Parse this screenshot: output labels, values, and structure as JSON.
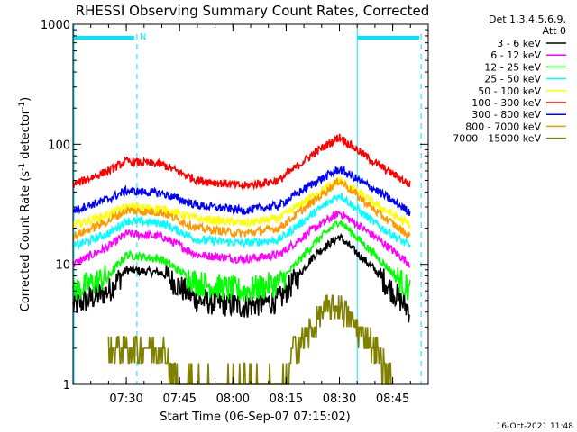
{
  "chart_data": {
    "type": "line",
    "title": "RHESSI Observing Summary Count Rates, Corrected",
    "ylabel_parts": [
      "Corrected Count Rate (s",
      "-1",
      " detector",
      "-1",
      ")"
    ],
    "xlabel": "Start Time (06-Sep-07 07:15:02)",
    "footer": "16-Oct-2021 11:48",
    "y_scale": "log",
    "ylim": [
      1,
      1000
    ],
    "y_ticks": [
      {
        "value": 1,
        "label": "1"
      },
      {
        "value": 10,
        "label": "10"
      },
      {
        "value": 100,
        "label": "100"
      },
      {
        "value": 1000,
        "label": "1000"
      }
    ],
    "x_range_minutes": [
      0,
      100
    ],
    "x_ticks": [
      {
        "minute": 15,
        "label": "07:30"
      },
      {
        "minute": 30,
        "label": "07:45"
      },
      {
        "minute": 45,
        "label": "08:00"
      },
      {
        "minute": 60,
        "label": "08:15"
      },
      {
        "minute": 75,
        "label": "08:30"
      },
      {
        "minute": 90,
        "label": "08:45"
      }
    ],
    "legend_header": [
      "Det 1,3,4,5,6,9,",
      "Att 0"
    ],
    "legend_placement": "right",
    "series": [
      {
        "name": "3 - 6 keV",
        "color": "#000000",
        "points": [
          [
            0,
            4.5
          ],
          [
            10,
            6
          ],
          [
            15,
            9
          ],
          [
            25,
            8.5
          ],
          [
            35,
            5
          ],
          [
            48,
            4.5
          ],
          [
            58,
            5
          ],
          [
            68,
            12
          ],
          [
            75,
            17
          ],
          [
            85,
            9
          ],
          [
            95,
            4
          ]
        ]
      },
      {
        "name": "6 - 12 keV",
        "color": "#ff00ff",
        "points": [
          [
            0,
            10
          ],
          [
            10,
            14
          ],
          [
            15,
            18
          ],
          [
            25,
            17
          ],
          [
            35,
            12
          ],
          [
            48,
            11
          ],
          [
            58,
            12
          ],
          [
            68,
            20
          ],
          [
            75,
            27
          ],
          [
            85,
            17
          ],
          [
            95,
            10
          ]
        ]
      },
      {
        "name": "12 - 25 keV",
        "color": "#00ff00",
        "points": [
          [
            0,
            6
          ],
          [
            10,
            8
          ],
          [
            15,
            12
          ],
          [
            25,
            11
          ],
          [
            35,
            7
          ],
          [
            48,
            6
          ],
          [
            58,
            7
          ],
          [
            68,
            15
          ],
          [
            75,
            23
          ],
          [
            85,
            12
          ],
          [
            95,
            6
          ]
        ]
      },
      {
        "name": "25 - 50 keV",
        "color": "#00ffff",
        "points": [
          [
            0,
            14
          ],
          [
            10,
            18
          ],
          [
            15,
            23
          ],
          [
            25,
            22
          ],
          [
            35,
            16
          ],
          [
            48,
            15
          ],
          [
            58,
            16
          ],
          [
            68,
            27
          ],
          [
            75,
            38
          ],
          [
            85,
            22
          ],
          [
            95,
            14
          ]
        ]
      },
      {
        "name": "50 - 100 keV",
        "color": "#ffff00",
        "points": [
          [
            0,
            21
          ],
          [
            10,
            26
          ],
          [
            15,
            30
          ],
          [
            25,
            29
          ],
          [
            35,
            24
          ],
          [
            48,
            22
          ],
          [
            58,
            24
          ],
          [
            68,
            38
          ],
          [
            75,
            50
          ],
          [
            85,
            32
          ],
          [
            95,
            21
          ]
        ]
      },
      {
        "name": "100 - 300 keV",
        "color": "#ff0000",
        "points": [
          [
            0,
            46
          ],
          [
            10,
            60
          ],
          [
            15,
            72
          ],
          [
            25,
            68
          ],
          [
            35,
            50
          ],
          [
            48,
            45
          ],
          [
            58,
            50
          ],
          [
            68,
            85
          ],
          [
            75,
            115
          ],
          [
            85,
            70
          ],
          [
            95,
            46
          ]
        ]
      },
      {
        "name": "300 - 800 keV",
        "color": "#0000ff",
        "points": [
          [
            0,
            28
          ],
          [
            10,
            35
          ],
          [
            15,
            41
          ],
          [
            25,
            39
          ],
          [
            35,
            31
          ],
          [
            48,
            28
          ],
          [
            58,
            31
          ],
          [
            68,
            48
          ],
          [
            75,
            62
          ],
          [
            85,
            42
          ],
          [
            95,
            27
          ]
        ]
      },
      {
        "name": "800 - 7000 keV",
        "color": "#ff9900",
        "points": [
          [
            0,
            17
          ],
          [
            10,
            23
          ],
          [
            15,
            28
          ],
          [
            25,
            27
          ],
          [
            35,
            20
          ],
          [
            48,
            18
          ],
          [
            58,
            20
          ],
          [
            68,
            34
          ],
          [
            75,
            50
          ],
          [
            85,
            28
          ],
          [
            95,
            17
          ]
        ]
      },
      {
        "name": "7000 - 15000 keV",
        "color": "#808000",
        "points": [
          [
            10,
            2
          ],
          [
            25,
            2
          ],
          [
            30,
            1
          ],
          [
            60,
            1
          ],
          [
            62,
            2
          ],
          [
            68,
            3
          ],
          [
            70,
            4
          ],
          [
            75,
            4.5
          ],
          [
            80,
            3
          ],
          [
            85,
            2
          ],
          [
            90,
            1
          ]
        ]
      }
    ],
    "annotations": {
      "night_bar": {
        "start_minute": 0,
        "end_minute": 18,
        "label": "N"
      },
      "day_bar_start_minute": 80,
      "saa_lines_minutes": [
        18,
        98
      ]
    },
    "grid": false
  }
}
